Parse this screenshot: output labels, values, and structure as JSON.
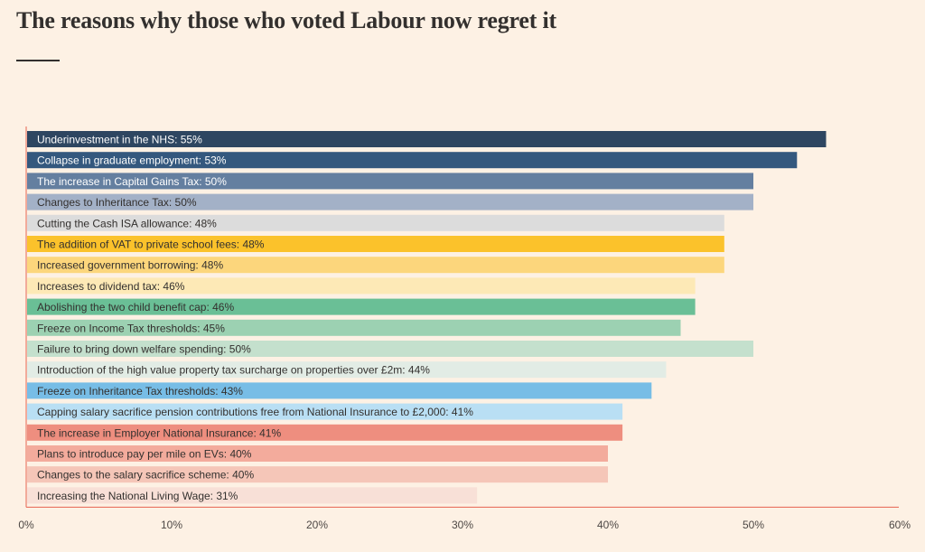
{
  "chart_data": {
    "type": "bar",
    "orientation": "horizontal",
    "title": "The reasons why those who voted Labour now regret it",
    "xlim": [
      0,
      60
    ],
    "x_ticks": [
      "0%",
      "10%",
      "20%",
      "30%",
      "40%",
      "50%",
      "60%"
    ],
    "grid": false,
    "categories": [
      "Underinvestment in the NHS: 55%",
      "Collapse in graduate employment: 53%",
      "The increase in Capital Gains Tax: 50%",
      "Changes to Inheritance Tax: 50%",
      "Cutting the Cash ISA allowance: 48%",
      "The addition of VAT to private school fees: 48%",
      "Increased government borrowing: 48%",
      "Increases to dividend tax: 46%",
      "Abolishing the two child benefit cap: 46%",
      "Freeze on Income Tax thresholds: 45%",
      "Failure to bring down welfare spending: 50%",
      "Introduction of the high value property tax surcharge on properties over £2m: 44%",
      "Freeze on Inheritance Tax thresholds: 43%",
      "Capping salary sacrifice pension contributions free from National Insurance to £2,000: 41%",
      "The increase in Employer National Insurance: 41%",
      "Plans to introduce pay per mile on EVs: 40%",
      "Changes to the salary sacrifice scheme: 40%",
      "Increasing the National Living Wage: 31%"
    ],
    "values": [
      55,
      53,
      50,
      50,
      48,
      48,
      48,
      46,
      46,
      45,
      50,
      44,
      43,
      41,
      41,
      40,
      40,
      31
    ],
    "colors": [
      "#2e4661",
      "#34587e",
      "#647fa0",
      "#a3b1c7",
      "#dcdcdc",
      "#fbc22b",
      "#fcd67c",
      "#fde9b6",
      "#6abf96",
      "#9cd1b2",
      "#c4e0cd",
      "#e2ece5",
      "#77bde6",
      "#b9dff4",
      "#ee8e7f",
      "#f3ab9c",
      "#f5c6b8",
      "#f8e0d7"
    ],
    "label_colors": [
      "#ffffff",
      "#ffffff",
      "#ffffff",
      "#33302e",
      "#33302e",
      "#33302e",
      "#33302e",
      "#33302e",
      "#33302e",
      "#33302e",
      "#33302e",
      "#33302e",
      "#33302e",
      "#33302e",
      "#33302e",
      "#33302e",
      "#33302e",
      "#33302e"
    ],
    "axis_color": "#e6624f"
  }
}
